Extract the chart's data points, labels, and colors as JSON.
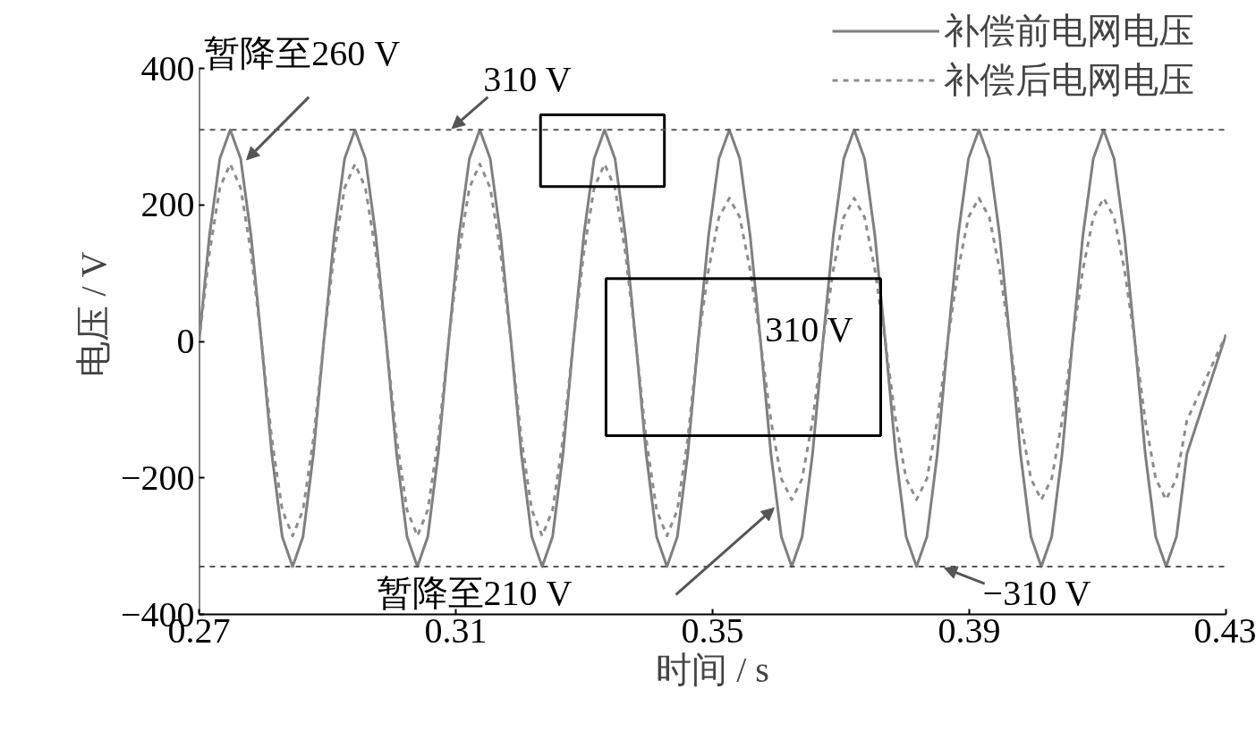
{
  "chart_data": {
    "type": "line",
    "xlabel": "时间 / s",
    "ylabel": "电压 / V",
    "xlim": [
      0.27,
      0.43
    ],
    "ylim": [
      -400,
      400
    ],
    "xticks": [
      0.27,
      0.31,
      0.35,
      0.39,
      0.43
    ],
    "yticks": [
      {
        "value": -400,
        "label": "−400"
      },
      {
        "value": -200,
        "label": "−200"
      },
      0,
      200,
      400
    ],
    "grid": false,
    "legend": "top right",
    "x": [
      0.27,
      0.27162,
      0.27324,
      0.27486,
      0.27648,
      0.2781,
      0.27972,
      0.28134,
      0.28296,
      0.28458,
      0.2862,
      0.28782,
      0.28944,
      0.29106,
      0.29268,
      0.2943,
      0.29592,
      0.29754,
      0.29916,
      0.30078,
      0.3024,
      0.30402,
      0.30564,
      0.30726,
      0.30888,
      0.3105,
      0.31212,
      0.31374,
      0.31536,
      0.31698,
      0.3186,
      0.32022,
      0.32184,
      0.32346,
      0.32508,
      0.3267,
      0.32832,
      0.32994,
      0.33156,
      0.33318,
      0.3348,
      0.33642,
      0.33804,
      0.33966,
      0.34128,
      0.3429,
      0.34452,
      0.34614,
      0.34776,
      0.34938,
      0.351,
      0.35262,
      0.35424,
      0.35586,
      0.35748,
      0.3591,
      0.36072,
      0.36234,
      0.36396,
      0.36558,
      0.3672,
      0.36882,
      0.37044,
      0.37206,
      0.37368,
      0.3753,
      0.37692,
      0.37854,
      0.38016,
      0.38178,
      0.3834,
      0.38502,
      0.38664,
      0.38826,
      0.38988,
      0.3915,
      0.39312,
      0.39474,
      0.39636,
      0.39798,
      0.3996,
      0.40122,
      0.40284,
      0.40446,
      0.40608,
      0.4077,
      0.40932,
      0.41094,
      0.41256,
      0.41418,
      0.4158,
      0.41742,
      0.41904,
      0.42066,
      0.42228,
      0.4239,
      0.43
    ],
    "series": [
      {
        "name": "补偿前电网电压",
        "color": "#7f7f7f",
        "line_style": "solid",
        "values": [
          0,
          155,
          268,
          310,
          268,
          155,
          0,
          -165,
          -286,
          -330,
          -286,
          -165,
          0,
          155,
          268,
          310,
          268,
          155,
          0,
          -165,
          -286,
          -330,
          -286,
          -165,
          0,
          155,
          268,
          310,
          268,
          155,
          0,
          -165,
          -286,
          -330,
          -286,
          -165,
          0,
          155,
          268,
          310,
          268,
          155,
          0,
          -165,
          -286,
          -330,
          -286,
          -165,
          0,
          155,
          268,
          310,
          268,
          155,
          0,
          -165,
          -286,
          -330,
          -286,
          -165,
          0,
          155,
          268,
          310,
          268,
          155,
          0,
          -165,
          -286,
          -330,
          -286,
          -165,
          0,
          155,
          268,
          310,
          268,
          155,
          0,
          -165,
          -286,
          -330,
          -286,
          -165,
          0,
          155,
          268,
          310,
          268,
          155,
          0,
          -165,
          -286,
          -330,
          -286,
          -165,
          10
        ]
      },
      {
        "name": "补偿后电网电压",
        "color": "#8c8c8c",
        "line_style": "dashed",
        "values": [
          0,
          130,
          225,
          260,
          225,
          130,
          0,
          -143,
          -247,
          -285,
          -247,
          -143,
          0,
          130,
          225,
          260,
          225,
          130,
          0,
          -143,
          -247,
          -285,
          -247,
          -143,
          0,
          130,
          225,
          260,
          225,
          130,
          0,
          -143,
          -247,
          -285,
          -247,
          -143,
          0,
          130,
          225,
          260,
          225,
          130,
          0,
          -143,
          -247,
          -285,
          -247,
          -143,
          0,
          105,
          182,
          210,
          182,
          105,
          0,
          -116,
          -201,
          -232,
          -201,
          -116,
          0,
          105,
          182,
          210,
          182,
          105,
          0,
          -116,
          -201,
          -232,
          -201,
          -116,
          0,
          105,
          182,
          210,
          182,
          105,
          0,
          -116,
          -201,
          -232,
          -201,
          -116,
          0,
          105,
          182,
          210,
          182,
          105,
          0,
          -116,
          -201,
          -232,
          -201,
          -116,
          10
        ]
      }
    ],
    "ref_lines": [
      {
        "axis": "y",
        "value": 310,
        "color": "#555555",
        "line_style": "dashed"
      },
      {
        "axis": "y",
        "value": -330,
        "color": "#555555",
        "line_style": "dashed"
      }
    ],
    "annotations": [
      {
        "text": "暂降至260 V",
        "x": 0.2774,
        "y": 266
      },
      {
        "text": "310 V",
        "x": 0.3094,
        "y": 312
      },
      "310 V",
      "暂降至210 V",
      {
        "text": "−310 V",
        "x": 0.3861,
        "y": -332
      }
    ]
  }
}
